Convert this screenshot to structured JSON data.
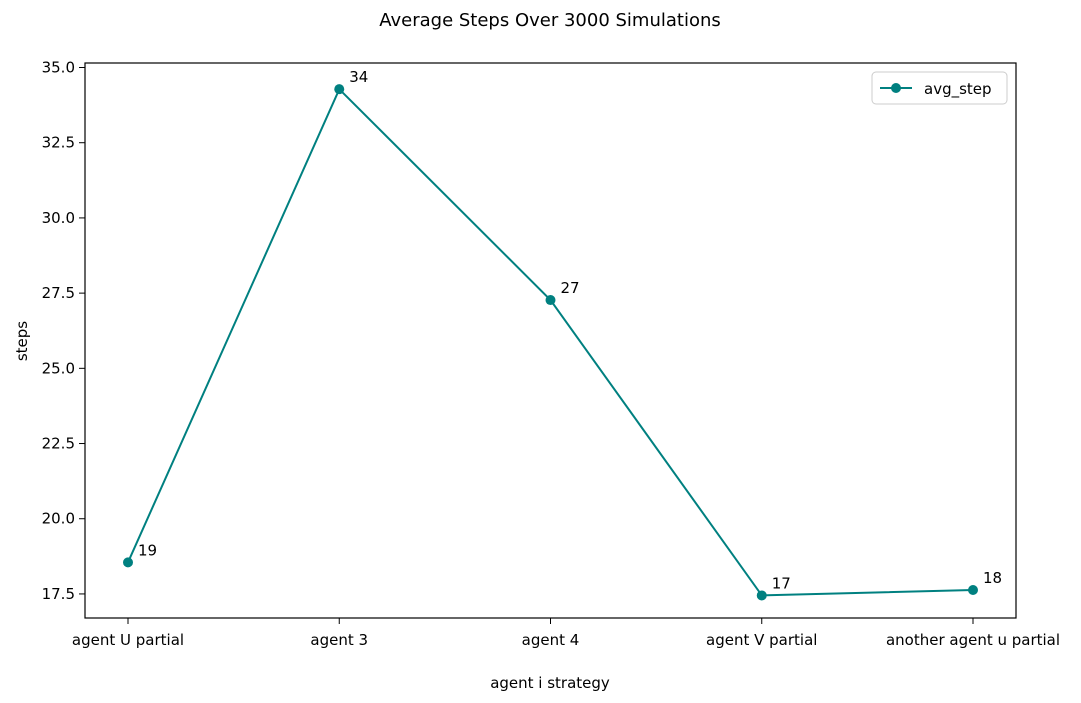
{
  "chart_data": {
    "type": "line",
    "title": "Average Steps Over 3000 Simulations",
    "xlabel": "agent i strategy",
    "ylabel": "steps",
    "categories": [
      "agent U partial",
      "agent 3",
      "agent 4",
      "agent V partial",
      "another agent u partial"
    ],
    "series": [
      {
        "name": "avg_step",
        "color": "#008080",
        "values": [
          18.55,
          34.28,
          27.27,
          17.45,
          17.63
        ],
        "labels": [
          "19",
          "34",
          "27",
          "17",
          "18"
        ]
      }
    ],
    "yticks": [
      "17.5",
      "20.0",
      "22.5",
      "25.0",
      "27.5",
      "30.0",
      "32.5",
      "35.0"
    ],
    "ylim": [
      16.7,
      35.15
    ],
    "grid": false,
    "legend_position": "top-right"
  }
}
